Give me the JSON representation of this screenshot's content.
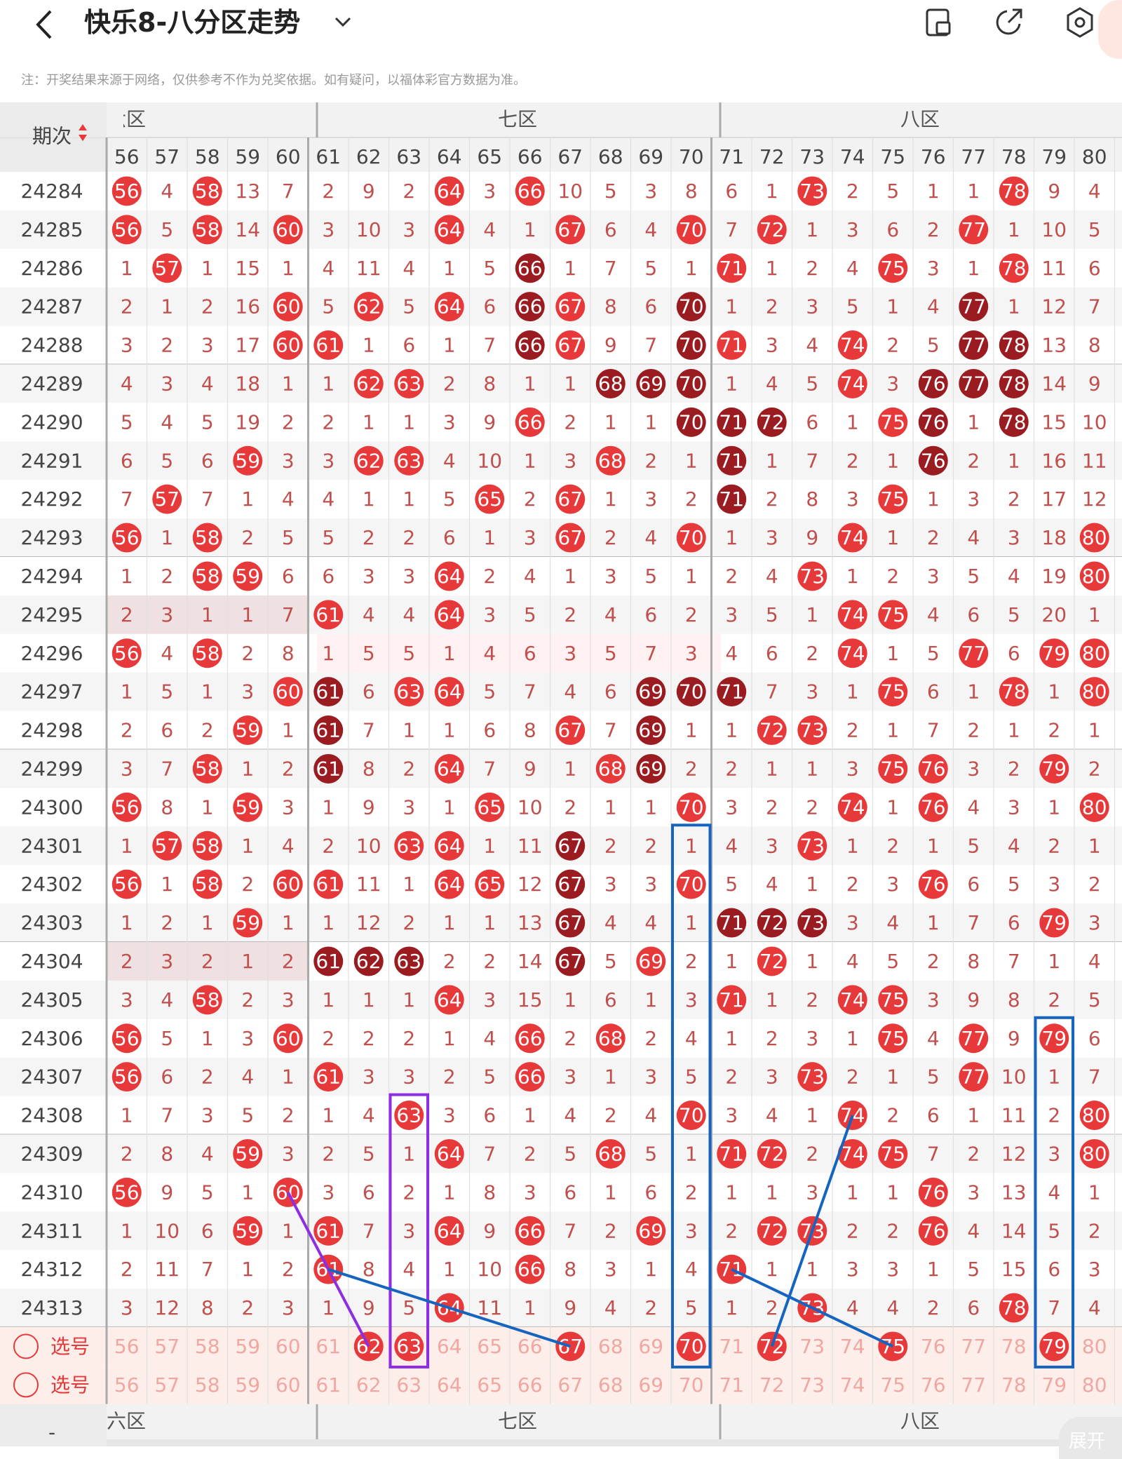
{
  "header": {
    "title": "快乐8-八分区走势",
    "note": "注：开奖结果来源于网络，仅供参考不作为兑奖依据。如有疑问，以福体彩官方数据为准。",
    "icons": [
      "back-icon",
      "chevron-down-icon",
      "screen-icon",
      "share-icon",
      "settings-icon"
    ]
  },
  "table": {
    "period_header": "期次",
    "zone_labels": [
      "六区",
      "七区",
      "八区"
    ],
    "columns": [
      56,
      57,
      58,
      59,
      60,
      61,
      62,
      63,
      64,
      65,
      66,
      67,
      68,
      69,
      70,
      71,
      72,
      73,
      74,
      75,
      76,
      77,
      78,
      79,
      80
    ],
    "pick_label": "选号",
    "expand_label": "展开",
    "rows": [
      {
        "issue": "24284",
        "cells": [
          "56",
          "4",
          "58",
          "13",
          "7",
          "2",
          "9",
          "2",
          "64",
          "3",
          "66",
          "10",
          "5",
          "3",
          "8",
          "6",
          "1",
          "73",
          "2",
          "5",
          "1",
          "1",
          "78",
          "9",
          "4"
        ]
      },
      {
        "issue": "24285",
        "cells": [
          "56",
          "5",
          "58",
          "14",
          "60",
          "3",
          "10",
          "3",
          "64",
          "4",
          "1",
          "67",
          "6",
          "4",
          "70",
          "7",
          "72",
          "1",
          "3",
          "6",
          "2",
          "77",
          "1",
          "10",
          "5"
        ]
      },
      {
        "issue": "24286",
        "cells": [
          "1",
          "57",
          "1",
          "15",
          "1",
          "4",
          "11",
          "4",
          "1",
          "5",
          "66",
          "1",
          "7",
          "5",
          "1",
          "71",
          "1",
          "2",
          "4",
          "75",
          "3",
          "1",
          "78",
          "11",
          "6"
        ]
      },
      {
        "issue": "24287",
        "cells": [
          "2",
          "1",
          "2",
          "16",
          "60",
          "5",
          "62",
          "5",
          "64",
          "6",
          "66",
          "67",
          "8",
          "6",
          "70",
          "1",
          "2",
          "3",
          "5",
          "1",
          "4",
          "77",
          "1",
          "12",
          "7"
        ]
      },
      {
        "issue": "24288",
        "cells": [
          "3",
          "2",
          "3",
          "17",
          "60",
          "61",
          "1",
          "6",
          "1",
          "7",
          "66",
          "67",
          "9",
          "7",
          "70",
          "71",
          "3",
          "4",
          "74",
          "2",
          "5",
          "77",
          "78",
          "13",
          "8"
        ]
      },
      {
        "issue": "24289",
        "cells": [
          "4",
          "3",
          "4",
          "18",
          "1",
          "1",
          "62",
          "63",
          "2",
          "8",
          "1",
          "1",
          "68",
          "69",
          "70",
          "1",
          "4",
          "5",
          "74",
          "3",
          "76",
          "77",
          "78",
          "14",
          "9"
        ]
      },
      {
        "issue": "24290",
        "cells": [
          "5",
          "4",
          "5",
          "19",
          "2",
          "2",
          "1",
          "1",
          "3",
          "9",
          "66",
          "2",
          "1",
          "1",
          "70",
          "71",
          "72",
          "6",
          "1",
          "75",
          "76",
          "1",
          "78",
          "15",
          "10"
        ]
      },
      {
        "issue": "24291",
        "cells": [
          "6",
          "5",
          "6",
          "59",
          "3",
          "3",
          "62",
          "63",
          "4",
          "10",
          "1",
          "3",
          "68",
          "2",
          "1",
          "71",
          "1",
          "7",
          "2",
          "1",
          "76",
          "2",
          "1",
          "16",
          "11"
        ]
      },
      {
        "issue": "24292",
        "cells": [
          "7",
          "57",
          "7",
          "1",
          "4",
          "4",
          "1",
          "1",
          "5",
          "65",
          "2",
          "67",
          "1",
          "3",
          "2",
          "71",
          "2",
          "8",
          "3",
          "75",
          "1",
          "3",
          "2",
          "17",
          "12"
        ]
      },
      {
        "issue": "24293",
        "cells": [
          "56",
          "1",
          "58",
          "2",
          "5",
          "5",
          "2",
          "2",
          "6",
          "1",
          "3",
          "67",
          "2",
          "4",
          "70",
          "1",
          "3",
          "9",
          "74",
          "1",
          "2",
          "4",
          "3",
          "18",
          "80"
        ]
      },
      {
        "issue": "24294",
        "cells": [
          "1",
          "2",
          "58",
          "59",
          "6",
          "6",
          "3",
          "3",
          "64",
          "2",
          "4",
          "1",
          "3",
          "5",
          "1",
          "2",
          "4",
          "73",
          "1",
          "2",
          "3",
          "5",
          "4",
          "19",
          "80"
        ]
      },
      {
        "issue": "24295",
        "cells": [
          "2",
          "3",
          "1",
          "1",
          "7",
          "61",
          "4",
          "4",
          "64",
          "3",
          "5",
          "2",
          "4",
          "6",
          "2",
          "3",
          "5",
          "1",
          "74",
          "75",
          "4",
          "6",
          "5",
          "20",
          "1"
        ]
      },
      {
        "issue": "24296",
        "cells": [
          "56",
          "4",
          "58",
          "2",
          "8",
          "1",
          "5",
          "5",
          "1",
          "4",
          "6",
          "3",
          "5",
          "7",
          "3",
          "4",
          "6",
          "2",
          "74",
          "1",
          "5",
          "77",
          "6",
          "79",
          "80"
        ]
      },
      {
        "issue": "24297",
        "cells": [
          "1",
          "5",
          "1",
          "3",
          "60",
          "61",
          "6",
          "63",
          "64",
          "5",
          "7",
          "4",
          "6",
          "69",
          "70",
          "71",
          "7",
          "3",
          "1",
          "75",
          "6",
          "1",
          "78",
          "1",
          "80"
        ]
      },
      {
        "issue": "24298",
        "cells": [
          "2",
          "6",
          "2",
          "59",
          "1",
          "61",
          "7",
          "1",
          "1",
          "6",
          "8",
          "67",
          "7",
          "69",
          "1",
          "1",
          "72",
          "73",
          "2",
          "1",
          "7",
          "2",
          "1",
          "2",
          "1"
        ]
      },
      {
        "issue": "24299",
        "cells": [
          "3",
          "7",
          "58",
          "1",
          "2",
          "61",
          "8",
          "2",
          "64",
          "7",
          "9",
          "1",
          "68",
          "69",
          "2",
          "2",
          "1",
          "1",
          "3",
          "75",
          "76",
          "3",
          "2",
          "79",
          "2"
        ]
      },
      {
        "issue": "24300",
        "cells": [
          "56",
          "8",
          "1",
          "59",
          "3",
          "1",
          "9",
          "3",
          "1",
          "65",
          "10",
          "2",
          "1",
          "1",
          "70",
          "3",
          "2",
          "2",
          "74",
          "1",
          "76",
          "4",
          "3",
          "1",
          "80"
        ]
      },
      {
        "issue": "24301",
        "cells": [
          "1",
          "57",
          "58",
          "1",
          "4",
          "2",
          "10",
          "63",
          "64",
          "1",
          "11",
          "67",
          "2",
          "2",
          "1",
          "4",
          "3",
          "73",
          "1",
          "2",
          "1",
          "5",
          "4",
          "2",
          "1"
        ]
      },
      {
        "issue": "24302",
        "cells": [
          "56",
          "1",
          "58",
          "2",
          "60",
          "61",
          "11",
          "1",
          "64",
          "65",
          "12",
          "67",
          "3",
          "3",
          "70",
          "5",
          "4",
          "1",
          "2",
          "3",
          "76",
          "6",
          "5",
          "3",
          "2"
        ]
      },
      {
        "issue": "24303",
        "cells": [
          "1",
          "2",
          "1",
          "59",
          "1",
          "1",
          "12",
          "2",
          "1",
          "1",
          "13",
          "67",
          "4",
          "4",
          "1",
          "71",
          "72",
          "73",
          "3",
          "4",
          "1",
          "7",
          "6",
          "79",
          "3"
        ]
      },
      {
        "issue": "24304",
        "cells": [
          "2",
          "3",
          "2",
          "1",
          "2",
          "61",
          "62",
          "63",
          "2",
          "2",
          "14",
          "67",
          "5",
          "69",
          "2",
          "1",
          "72",
          "1",
          "4",
          "5",
          "2",
          "8",
          "7",
          "1",
          "4"
        ]
      },
      {
        "issue": "24305",
        "cells": [
          "3",
          "4",
          "58",
          "2",
          "3",
          "1",
          "1",
          "1",
          "64",
          "3",
          "15",
          "1",
          "6",
          "1",
          "3",
          "71",
          "1",
          "2",
          "74",
          "75",
          "3",
          "9",
          "8",
          "2",
          "5"
        ]
      },
      {
        "issue": "24306",
        "cells": [
          "56",
          "5",
          "1",
          "3",
          "60",
          "2",
          "2",
          "2",
          "1",
          "4",
          "66",
          "2",
          "68",
          "2",
          "4",
          "1",
          "2",
          "3",
          "1",
          "75",
          "4",
          "77",
          "9",
          "79",
          "6"
        ]
      },
      {
        "issue": "24307",
        "cells": [
          "56",
          "6",
          "2",
          "4",
          "1",
          "61",
          "3",
          "3",
          "2",
          "5",
          "66",
          "3",
          "1",
          "3",
          "5",
          "2",
          "3",
          "73",
          "2",
          "1",
          "5",
          "77",
          "10",
          "1",
          "7"
        ]
      },
      {
        "issue": "24308",
        "cells": [
          "1",
          "7",
          "3",
          "5",
          "2",
          "1",
          "4",
          "63",
          "3",
          "6",
          "1",
          "4",
          "2",
          "4",
          "70",
          "3",
          "4",
          "1",
          "74",
          "2",
          "6",
          "1",
          "11",
          "2",
          "80"
        ]
      },
      {
        "issue": "24309",
        "cells": [
          "2",
          "8",
          "4",
          "59",
          "3",
          "2",
          "5",
          "1",
          "64",
          "7",
          "2",
          "5",
          "68",
          "5",
          "1",
          "71",
          "72",
          "2",
          "74",
          "75",
          "7",
          "2",
          "12",
          "3",
          "80"
        ]
      },
      {
        "issue": "24310",
        "cells": [
          "56",
          "9",
          "5",
          "1",
          "60",
          "3",
          "6",
          "2",
          "1",
          "8",
          "3",
          "6",
          "1",
          "6",
          "2",
          "1",
          "1",
          "3",
          "1",
          "1",
          "76",
          "3",
          "13",
          "4",
          "1"
        ]
      },
      {
        "issue": "24311",
        "cells": [
          "1",
          "10",
          "6",
          "59",
          "1",
          "61",
          "7",
          "3",
          "64",
          "9",
          "66",
          "7",
          "2",
          "69",
          "3",
          "2",
          "72",
          "73",
          "2",
          "2",
          "76",
          "4",
          "14",
          "5",
          "2"
        ]
      },
      {
        "issue": "24312",
        "cells": [
          "2",
          "11",
          "7",
          "1",
          "2",
          "61",
          "8",
          "4",
          "1",
          "10",
          "66",
          "8",
          "3",
          "1",
          "4",
          "71",
          "1",
          "1",
          "3",
          "3",
          "1",
          "5",
          "15",
          "6",
          "3"
        ]
      },
      {
        "issue": "24313",
        "cells": [
          "3",
          "12",
          "8",
          "2",
          "3",
          "1",
          "9",
          "5",
          "64",
          "11",
          "1",
          "9",
          "4",
          "2",
          "5",
          "1",
          "2",
          "73",
          "4",
          "4",
          "2",
          "6",
          "78",
          "7",
          "4"
        ]
      }
    ],
    "dark_hits": [
      "24287-66",
      "24288-66",
      "24288-78",
      "24288-77",
      "24289-68",
      "24289-69",
      "24289-70",
      "24289-76",
      "24289-77",
      "24289-78",
      "24290-70",
      "24290-71",
      "24290-72",
      "24290-76",
      "24290-78",
      "24291-71",
      "24291-76",
      "24292-71",
      "24297-61",
      "24297-69",
      "24297-70",
      "24297-71",
      "24298-61",
      "24298-69",
      "24299-61",
      "24299-69",
      "24301-67",
      "24302-67",
      "24303-67",
      "24303-71",
      "24303-72",
      "24303-73",
      "24304-61",
      "24304-62",
      "24304-63",
      "24304-67",
      "24286-66",
      "24287-70",
      "24288-70",
      "24287-77"
    ],
    "pick_rows": [
      {
        "selected": [
          "62",
          "63",
          "67",
          "70",
          "72",
          "75",
          "79"
        ]
      },
      {
        "selected": []
      }
    ],
    "colors": {
      "hit": "#e8393a",
      "hit_dark": "#9b1c20",
      "text": "#c0504d",
      "header_bg": "#f2f2f2",
      "pick_bg": "#fdeeea",
      "blue_line": "#1565c0",
      "purple_line": "#8e2de2"
    }
  }
}
